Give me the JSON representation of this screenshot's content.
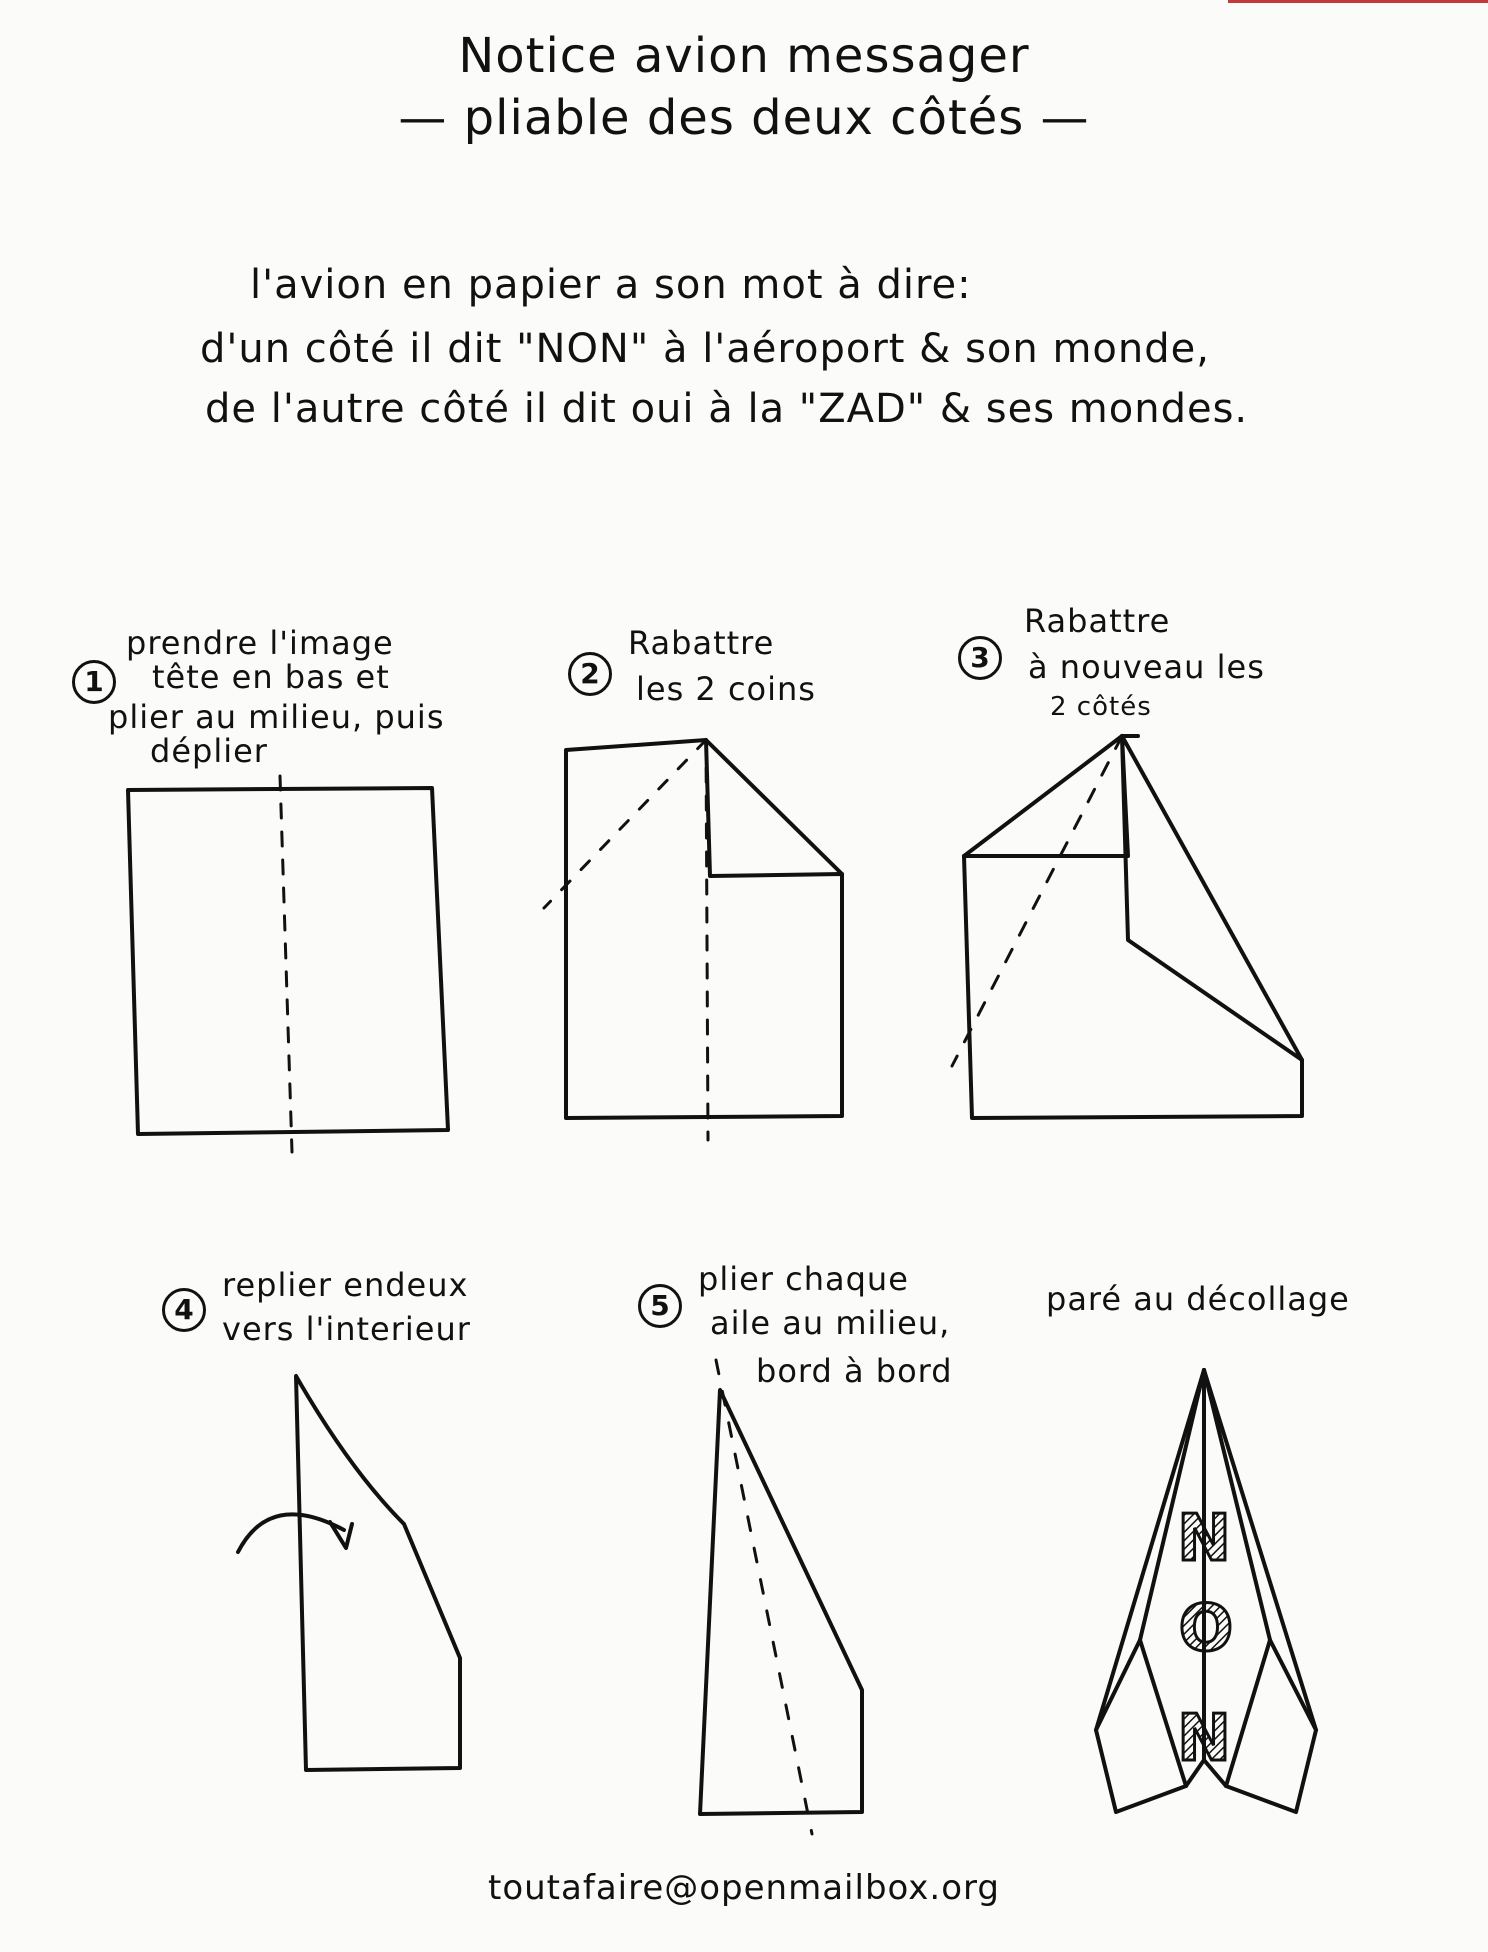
{
  "title": {
    "line1": "Notice avion messager",
    "line2": "— pliable des deux côtés —"
  },
  "intro": {
    "line1": "l'avion en papier a son mot à dire:",
    "line2": "d'un côté il dit \"NON\" à l'aéroport & son monde,",
    "line3": "de l'autre côté il dit oui à la \"ZAD\" & ses mondes."
  },
  "steps": [
    {
      "number": "1",
      "lines": [
        "prendre l'image",
        "tête en bas et",
        "plier au milieu, puis",
        "déplier"
      ]
    },
    {
      "number": "2",
      "lines": [
        "Rabattre",
        "les 2 coins"
      ]
    },
    {
      "number": "3",
      "lines": [
        "Rabattre",
        "à nouveau les",
        "2 côtés"
      ]
    },
    {
      "number": "4",
      "lines": [
        "replier endeux",
        "vers l'interieur"
      ]
    },
    {
      "number": "5",
      "lines": [
        "plier chaque",
        "aile au milieu,",
        "bord à bord"
      ]
    }
  ],
  "final": {
    "label": "paré au décollage",
    "plane_text": [
      "N",
      "O",
      "N"
    ]
  },
  "footer": {
    "email": "toutafaire@openmailbox.org"
  }
}
